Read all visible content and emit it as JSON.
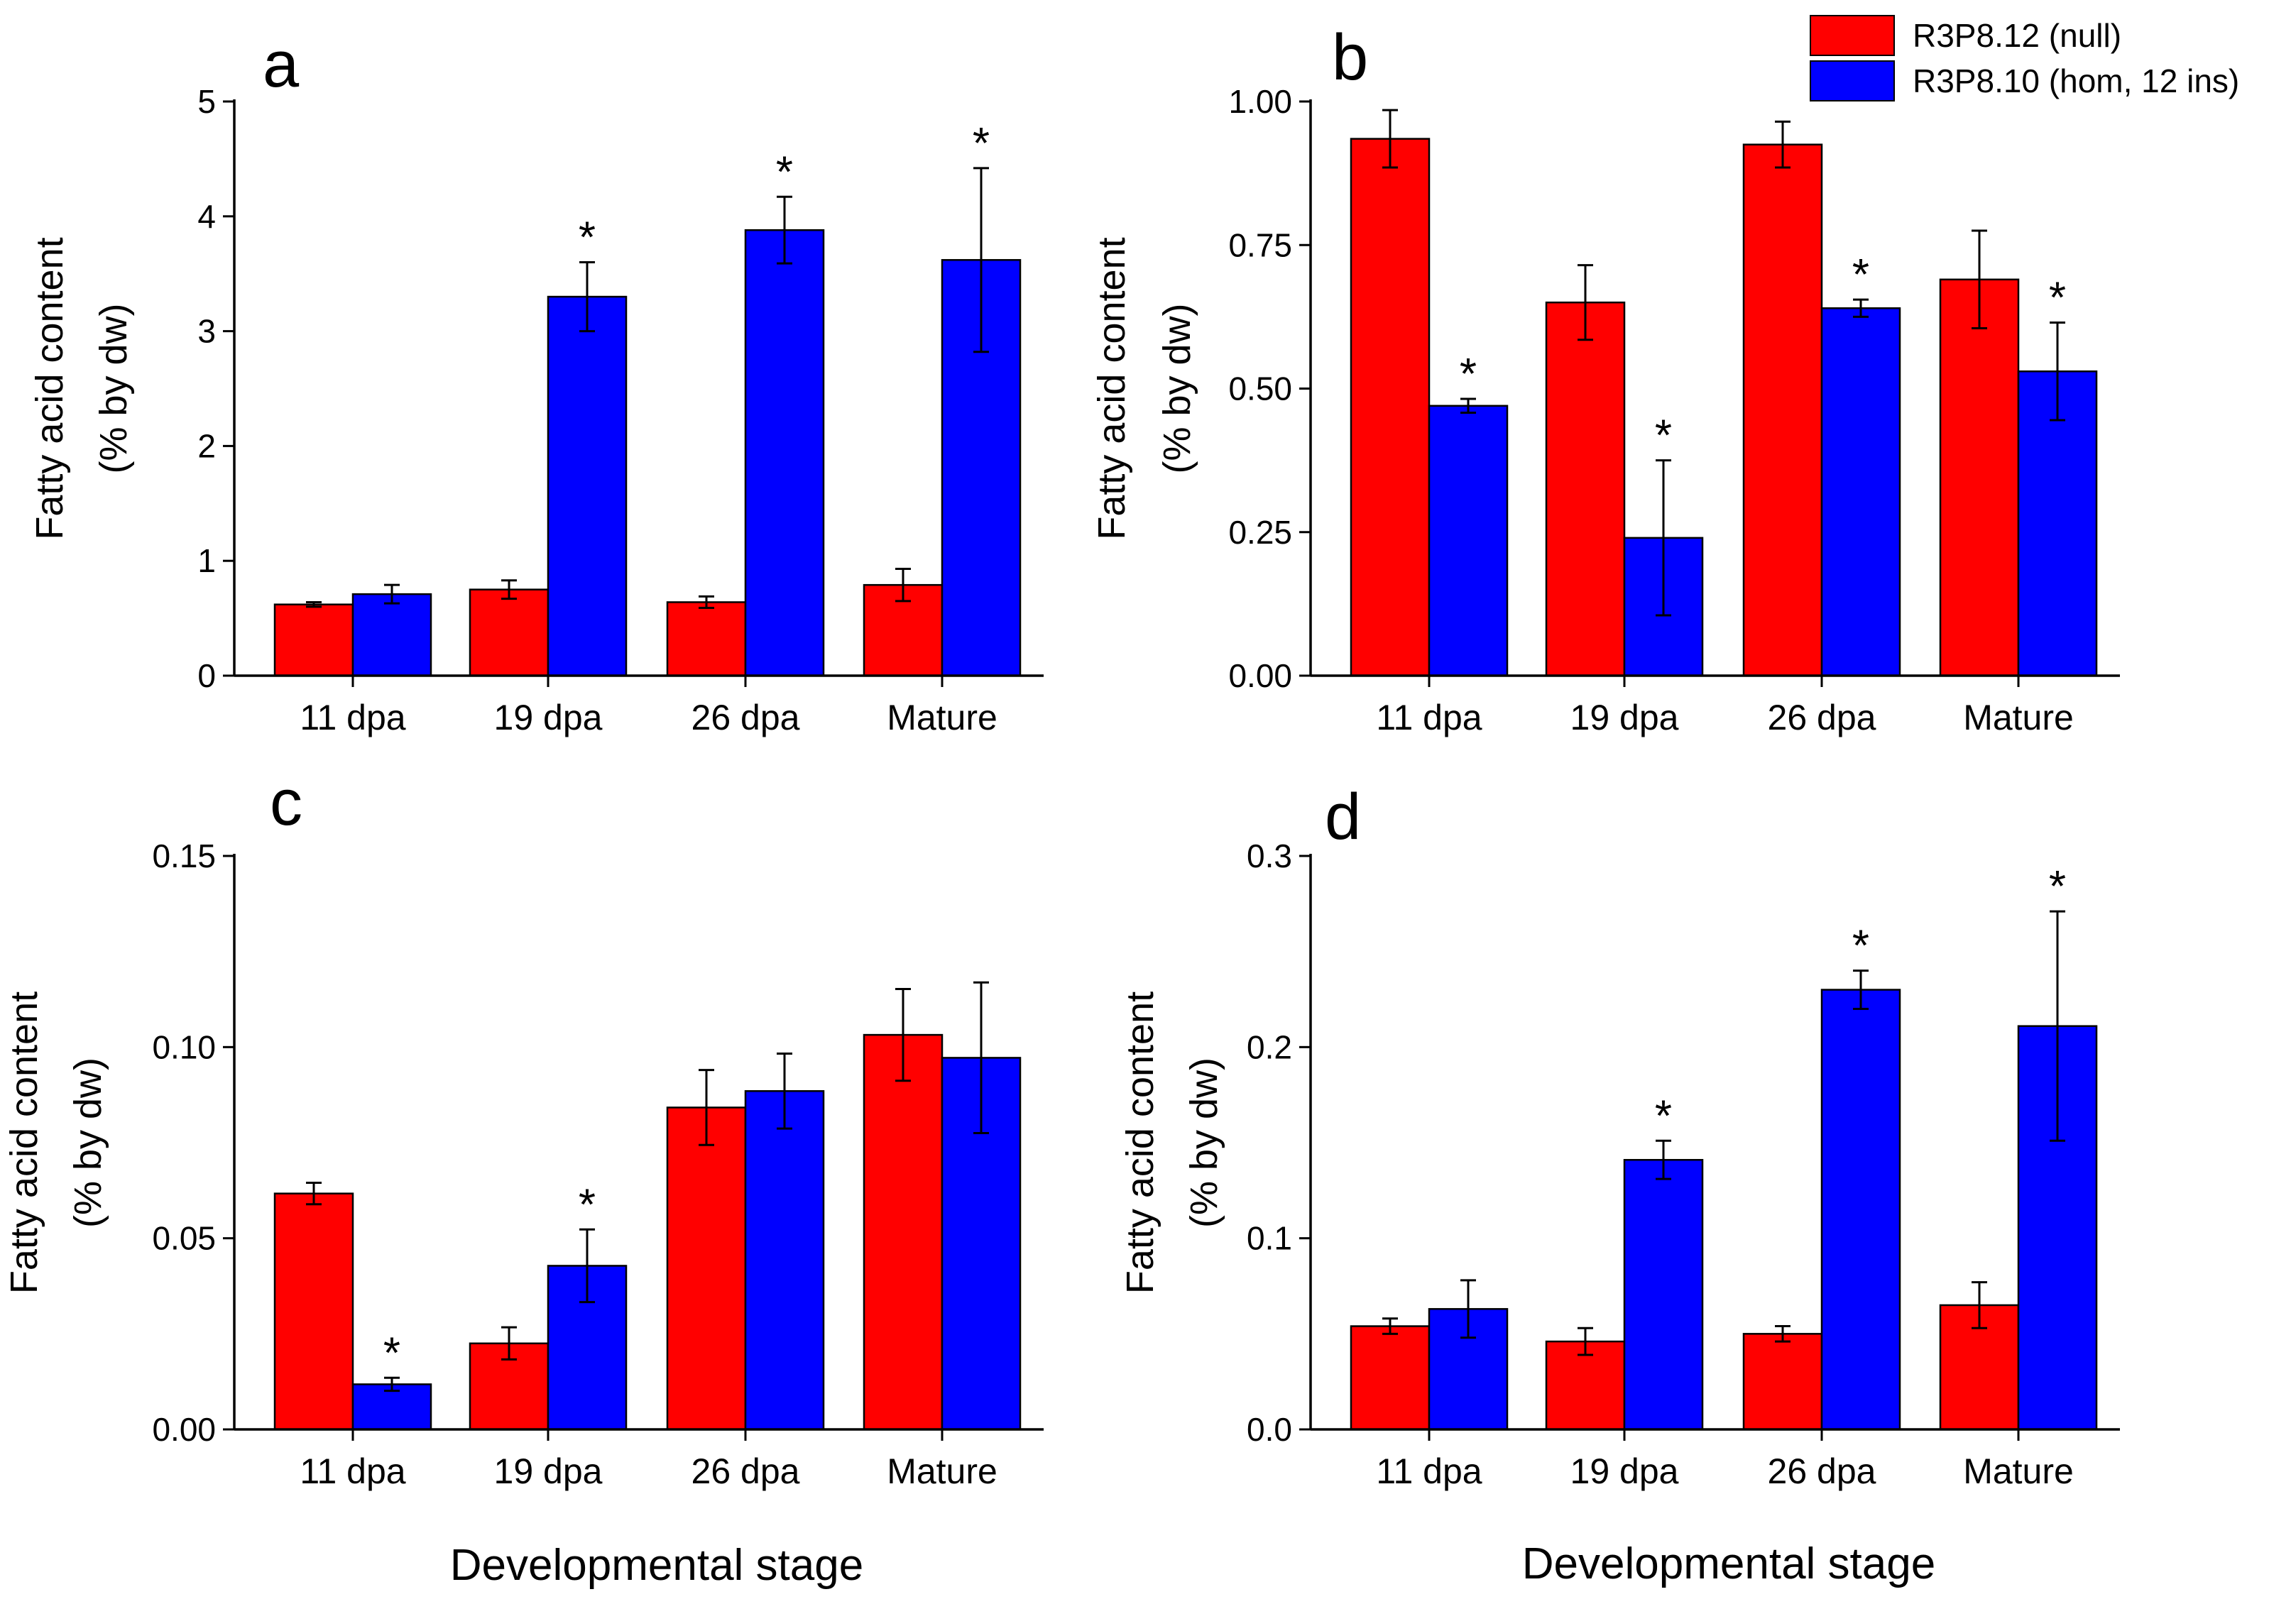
{
  "figure": {
    "xlabel": "Developmental stage",
    "legend": [
      {
        "label": "R3P8.12 (null)",
        "color": "#ff0000"
      },
      {
        "label": "R3P8.10 (hom, 12 ins)",
        "color": "#0000ff"
      }
    ]
  },
  "chart_data": [
    {
      "type": "bar",
      "panel": "a",
      "categories": [
        "11 dpa",
        "19 dpa",
        "26 dpa",
        "Mature"
      ],
      "ylabel_line1": "Fatty acid content",
      "ylabel_line2": "(% by dw)",
      "ylim": [
        0,
        5
      ],
      "yticks": [
        0,
        1,
        2,
        3,
        4,
        5
      ],
      "ytick_labels": [
        "0",
        "1",
        "2",
        "3",
        "4",
        "5"
      ],
      "series": [
        {
          "name": "R3P8.12 (null)",
          "color": "#ff0000",
          "values": [
            0.62,
            0.75,
            0.64,
            0.79
          ],
          "errors": [
            0.02,
            0.08,
            0.05,
            0.14
          ],
          "stars": [
            "",
            "",
            "",
            ""
          ]
        },
        {
          "name": "R3P8.10 (hom, 12 ins)",
          "color": "#0000ff",
          "values": [
            0.71,
            3.3,
            3.88,
            3.62
          ],
          "errors": [
            0.08,
            0.3,
            0.29,
            0.8
          ],
          "stars": [
            "",
            "*",
            "*",
            "*"
          ]
        }
      ]
    },
    {
      "type": "bar",
      "panel": "b",
      "categories": [
        "11 dpa",
        "19 dpa",
        "26 dpa",
        "Mature"
      ],
      "ylabel_line1": "Fatty acid content",
      "ylabel_line2": "(% by dw)",
      "ylim": [
        0,
        1.0
      ],
      "yticks": [
        0,
        0.25,
        0.5,
        0.75,
        1.0
      ],
      "ytick_labels": [
        "0.00",
        "0.25",
        "0.50",
        "0.75",
        "1.00"
      ],
      "series": [
        {
          "name": "R3P8.12 (null)",
          "color": "#ff0000",
          "values": [
            0.935,
            0.65,
            0.925,
            0.69
          ],
          "errors": [
            0.05,
            0.065,
            0.04,
            0.085
          ],
          "stars": [
            "",
            "",
            "",
            ""
          ]
        },
        {
          "name": "R3P8.10 (hom, 12 ins)",
          "color": "#0000ff",
          "values": [
            0.47,
            0.24,
            0.64,
            0.53
          ],
          "errors": [
            0.012,
            0.135,
            0.015,
            0.085
          ],
          "stars": [
            "*",
            "*",
            "*",
            "*"
          ]
        }
      ]
    },
    {
      "type": "bar",
      "panel": "c",
      "categories": [
        "11 dpa",
        "19 dpa",
        "26 dpa",
        "Mature"
      ],
      "ylabel_line1": "Fatty acid content",
      "ylabel_line2": "(% by dw)",
      "ylim": [
        0,
        0.15
      ],
      "yticks": [
        0,
        0.05,
        0.1,
        0.15
      ],
      "ytick_labels": [
        "0.00",
        "0.05",
        "0.10",
        "0.15"
      ],
      "series": [
        {
          "name": "R3P8.12 (null)",
          "color": "#ff0000",
          "values": [
            0.0617,
            0.0225,
            0.0842,
            0.1032
          ],
          "errors": [
            0.0028,
            0.0042,
            0.0098,
            0.012
          ],
          "stars": [
            "",
            "",
            "",
            ""
          ]
        },
        {
          "name": "R3P8.10 (hom, 12 ins)",
          "color": "#0000ff",
          "values": [
            0.0118,
            0.0428,
            0.0885,
            0.0972
          ],
          "errors": [
            0.0017,
            0.0095,
            0.0098,
            0.0197
          ],
          "stars": [
            "*",
            "*",
            "",
            ""
          ]
        }
      ]
    },
    {
      "type": "bar",
      "panel": "d",
      "categories": [
        "11 dpa",
        "19 dpa",
        "26 dpa",
        "Mature"
      ],
      "ylabel_line1": "Fatty acid content",
      "ylabel_line2": "(% by dw)",
      "ylim": [
        0,
        0.3
      ],
      "yticks": [
        0,
        0.1,
        0.2,
        0.3
      ],
      "ytick_labels": [
        "0.0",
        "0.1",
        "0.2",
        "0.3"
      ],
      "series": [
        {
          "name": "R3P8.12 (null)",
          "color": "#ff0000",
          "values": [
            0.054,
            0.046,
            0.05,
            0.065
          ],
          "errors": [
            0.004,
            0.007,
            0.004,
            0.012
          ],
          "stars": [
            "",
            "",
            "",
            ""
          ]
        },
        {
          "name": "R3P8.10 (hom, 12 ins)",
          "color": "#0000ff",
          "values": [
            0.063,
            0.141,
            0.23,
            0.211
          ],
          "errors": [
            0.015,
            0.01,
            0.01,
            0.06
          ],
          "stars": [
            "",
            "*",
            "*",
            "*"
          ]
        }
      ]
    }
  ]
}
